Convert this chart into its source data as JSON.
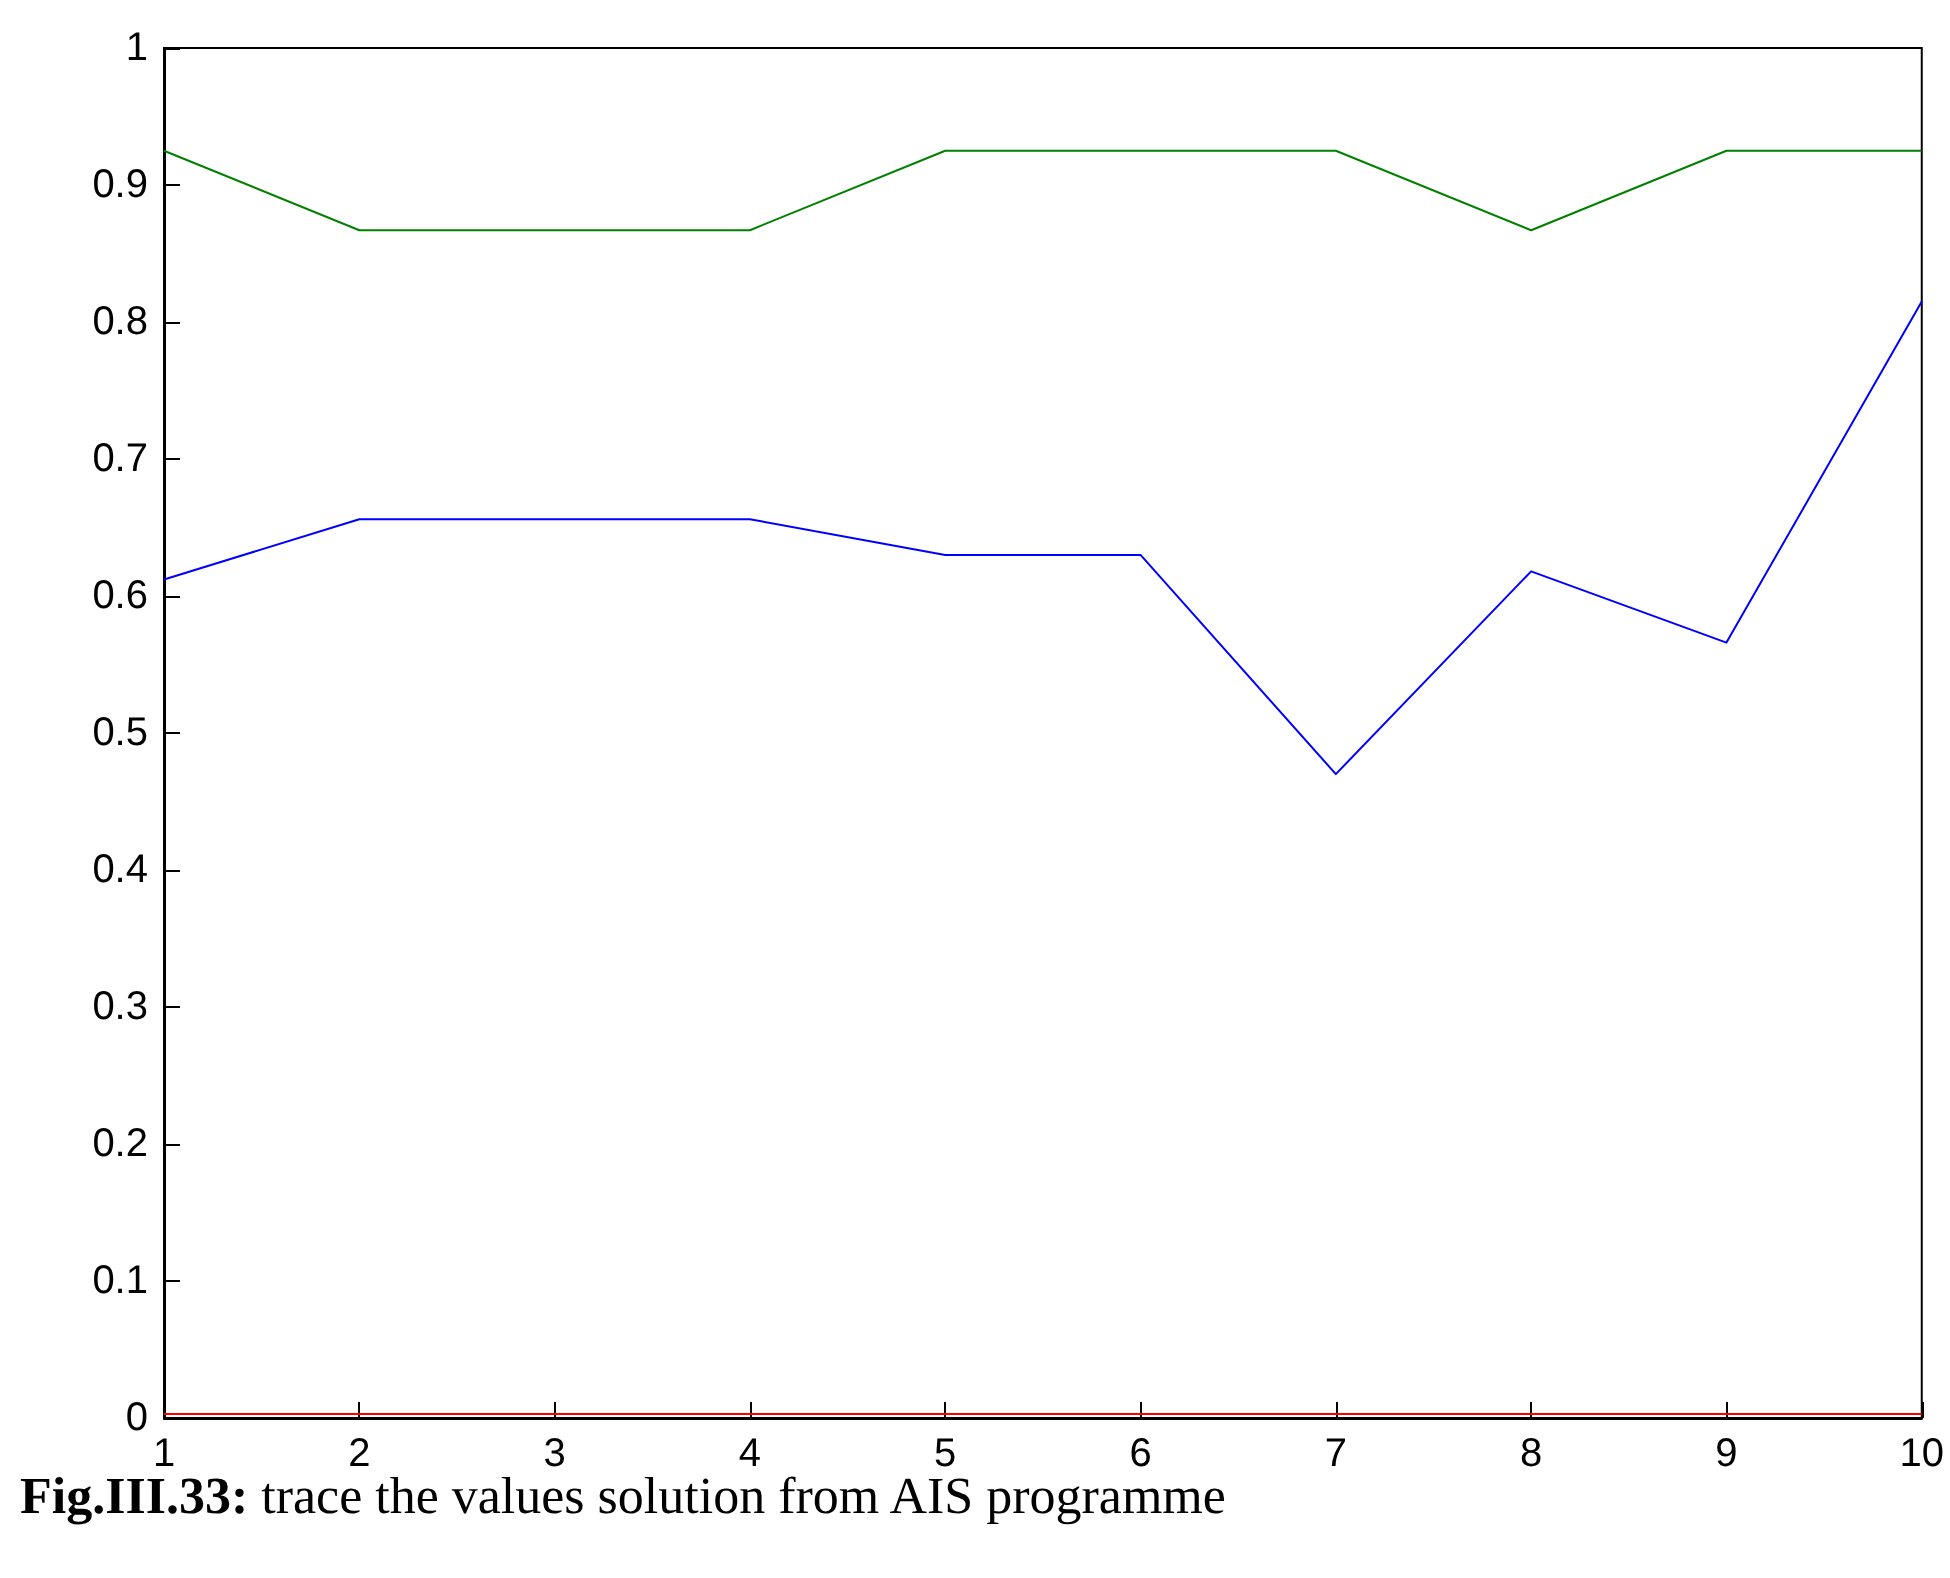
{
  "chart_data": {
    "type": "line",
    "x": [
      1,
      2,
      3,
      4,
      5,
      6,
      7,
      8,
      9,
      10
    ],
    "series": [
      {
        "color": "#008000",
        "values": [
          0.925,
          0.867,
          0.867,
          0.867,
          0.925,
          0.925,
          0.925,
          0.867,
          0.925,
          0.925
        ]
      },
      {
        "color": "#0000ff",
        "values": [
          0.612,
          0.656,
          0.656,
          0.656,
          0.63,
          0.63,
          0.47,
          0.618,
          0.566,
          0.815
        ]
      },
      {
        "color": "#ff0000",
        "values": [
          0.003,
          0.003,
          0.003,
          0.003,
          0.003,
          0.003,
          0.003,
          0.003,
          0.003,
          0.003
        ]
      }
    ],
    "xlim": [
      1,
      10
    ],
    "xticks": [
      1,
      2,
      3,
      4,
      5,
      6,
      7,
      8,
      9,
      10
    ],
    "ylim": [
      0,
      1
    ],
    "yticks": [
      0,
      0.1,
      0.2,
      0.3,
      0.4,
      0.5,
      0.6,
      0.7,
      0.8,
      0.9,
      1
    ],
    "grid": false,
    "marker": "none",
    "line_style": "solid",
    "annotations": [
      "Fig.III.33: trace the values solution from AIS programme"
    ]
  }
}
